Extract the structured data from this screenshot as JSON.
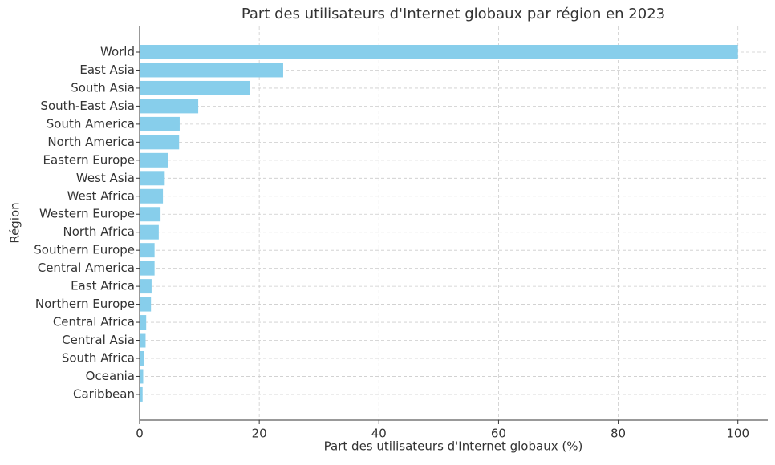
{
  "chart_data": {
    "type": "barh",
    "title": "Part des utilisateurs d'Internet globaux par région en 2023",
    "x_label": "Part des utilisateurs d'Internet globaux (%)",
    "y_label": "Région",
    "categories": [
      "World",
      "East Asia",
      "South Asia",
      "South-East Asia",
      "South America",
      "North America",
      "Eastern Europe",
      "West Asia",
      "West Africa",
      "Western Europe",
      "North Africa",
      "Southern Europe",
      "Central America",
      "East Africa",
      "Northern Europe",
      "Central Africa",
      "Central Asia",
      "South Africa",
      "Oceania",
      "Caribbean"
    ],
    "values": [
      100,
      24,
      18.4,
      9.8,
      6.7,
      6.6,
      4.8,
      4.2,
      3.9,
      3.5,
      3.2,
      2.5,
      2.5,
      2.0,
      1.9,
      1.1,
      1.0,
      0.8,
      0.6,
      0.5
    ],
    "color": "#87ceeb",
    "xlim": [
      0,
      105
    ],
    "xticks": [
      0,
      20,
      40,
      60,
      80,
      100
    ],
    "grid": true
  }
}
